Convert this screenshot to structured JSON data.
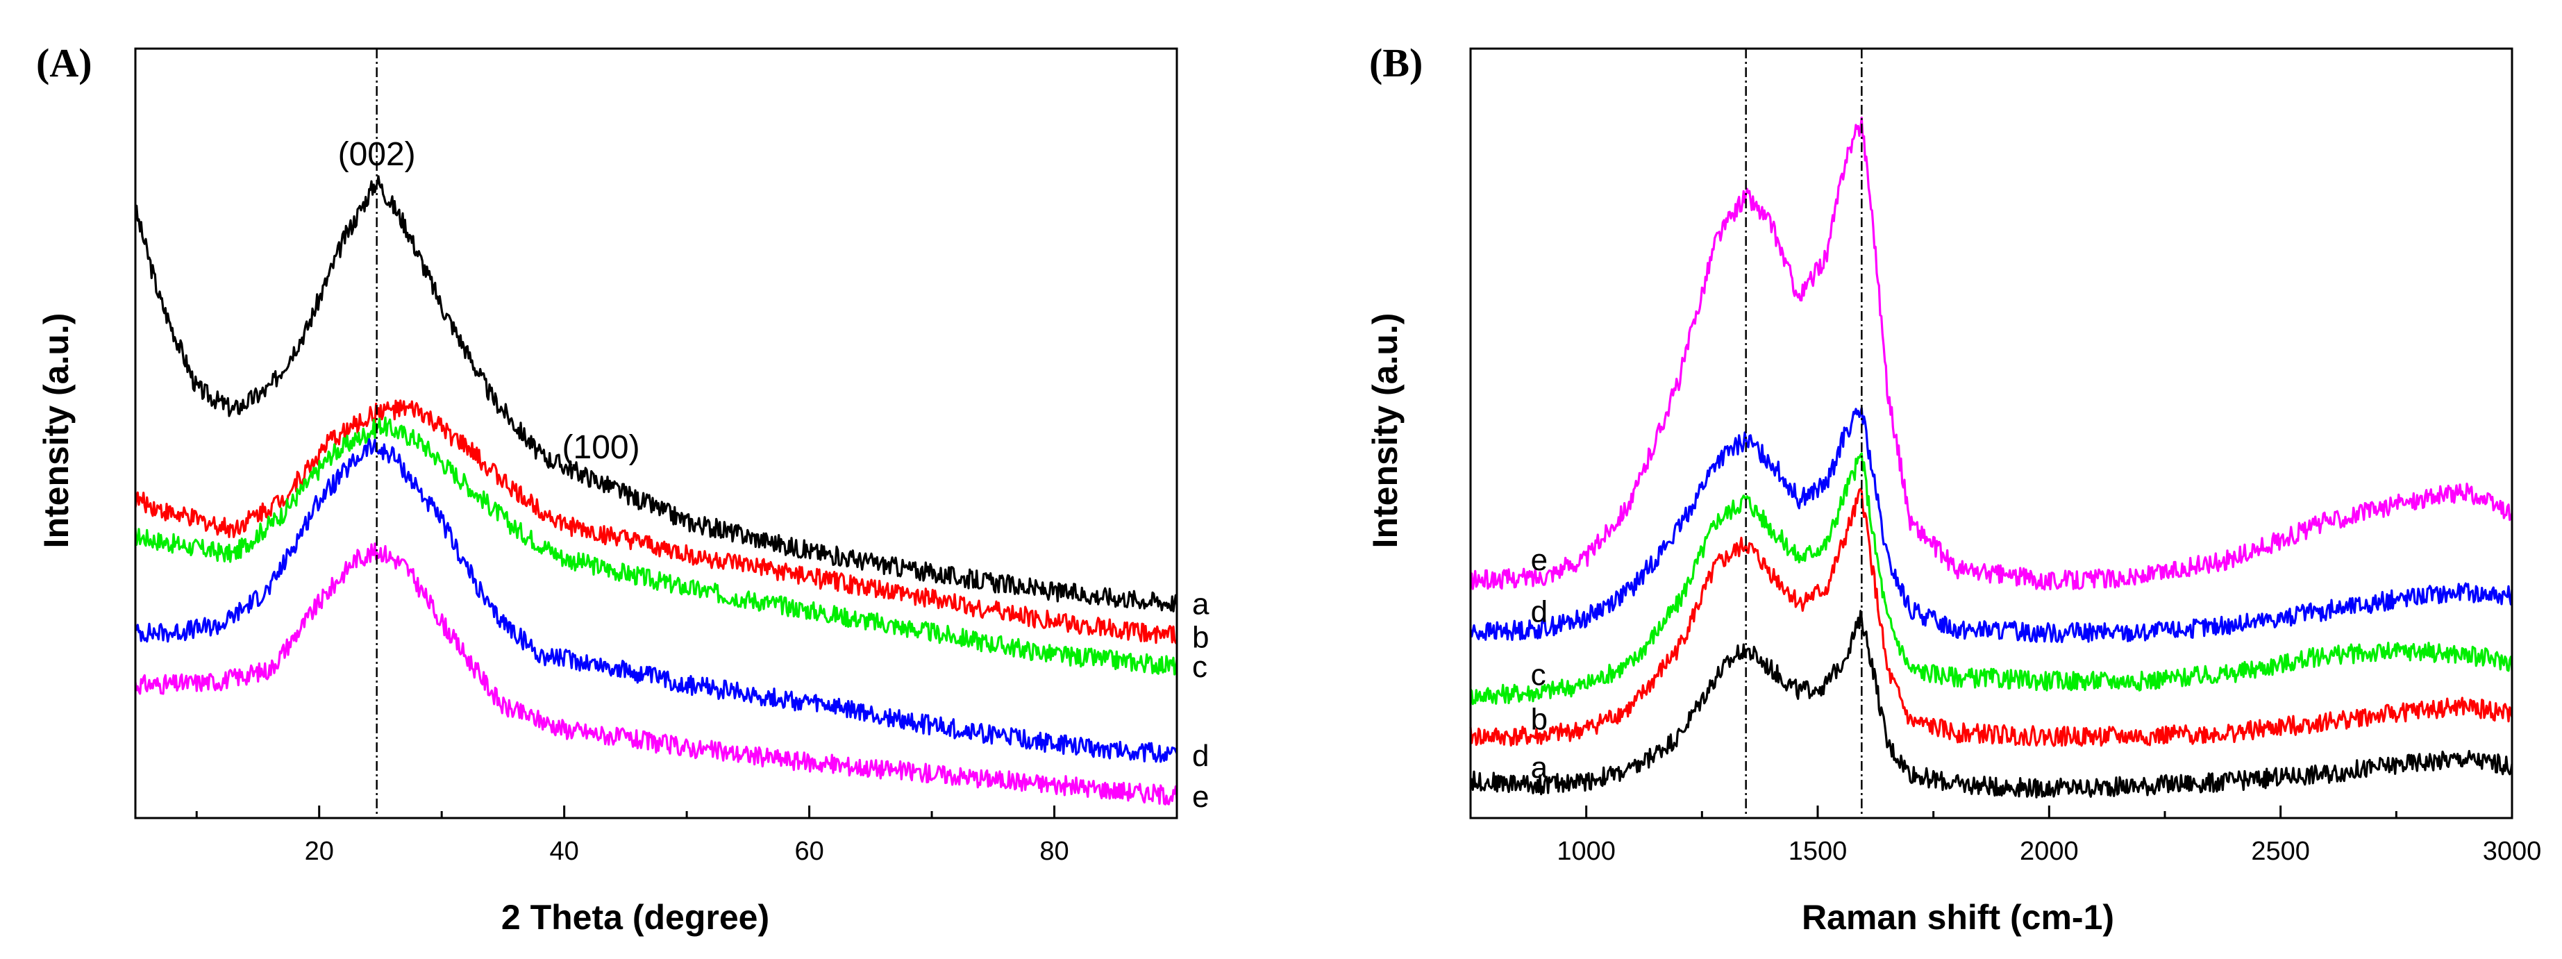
{
  "chart_data": [
    {
      "panel_label": "(A)",
      "type": "line",
      "xlabel": "2 Theta (degree)",
      "ylabel": "Intensity (a.u.)",
      "xlim": [
        5,
        90
      ],
      "ylim": [
        0,
        100
      ],
      "x_ticks": [
        20,
        40,
        60,
        80
      ],
      "x_minor_ticks": [
        10,
        30,
        50,
        70
      ],
      "tick_labels": [
        "20",
        "40",
        "60",
        "80"
      ],
      "vertical_reference_lines": [
        24.7
      ],
      "annotations": [
        {
          "text": "(002)",
          "x": 24.7,
          "y": 88
        },
        {
          "text": "(100)",
          "x": 43,
          "y": 48.5
        }
      ],
      "series": [
        {
          "name": "a",
          "color": "#000000",
          "points": [
            [
              5,
              82
            ],
            [
              7,
              70
            ],
            [
              10,
              58
            ],
            [
              13,
              55
            ],
            [
              16,
              58
            ],
            [
              19,
              66
            ],
            [
              22,
              78
            ],
            [
              24.7,
              86
            ],
            [
              27,
              80
            ],
            [
              30,
              69
            ],
            [
              34,
              57
            ],
            [
              38,
              49
            ],
            [
              42,
              46
            ],
            [
              50,
              40
            ],
            [
              60,
              36
            ],
            [
              70,
              33
            ],
            [
              80,
              30.5
            ],
            [
              90,
              29
            ]
          ]
        },
        {
          "name": "b",
          "color": "#ff0000",
          "points": [
            [
              5,
              43
            ],
            [
              8,
              41
            ],
            [
              13,
              39
            ],
            [
              17,
              43
            ],
            [
              21,
              51
            ],
            [
              25,
              55
            ],
            [
              28,
              55
            ],
            [
              32,
              50
            ],
            [
              36,
              44
            ],
            [
              40,
              39.5
            ],
            [
              50,
              35.5
            ],
            [
              60,
              32.5
            ],
            [
              70,
              29.5
            ],
            [
              80,
              26.5
            ],
            [
              90,
              24.5
            ]
          ]
        },
        {
          "name": "c",
          "color": "#00ee00",
          "points": [
            [
              5,
              38
            ],
            [
              8,
              37
            ],
            [
              13,
              35.5
            ],
            [
              17,
              41
            ],
            [
              21,
              49
            ],
            [
              25,
              53
            ],
            [
              28,
              51
            ],
            [
              32,
              45
            ],
            [
              36,
              39
            ],
            [
              40,
              35
            ],
            [
              50,
              31
            ],
            [
              60,
              28
            ],
            [
              70,
              25
            ],
            [
              80,
              22
            ],
            [
              90,
              20.5
            ]
          ]
        },
        {
          "name": "d",
          "color": "#0000ff",
          "points": [
            [
              5,
              25
            ],
            [
              8,
              25
            ],
            [
              12,
              26
            ],
            [
              16,
              31
            ],
            [
              20,
              43
            ],
            [
              24,
              50
            ],
            [
              26,
              49
            ],
            [
              30,
              40
            ],
            [
              34,
              28
            ],
            [
              38,
              22
            ],
            [
              42,
              21
            ],
            [
              50,
              18
            ],
            [
              60,
              15.5
            ],
            [
              70,
              12.5
            ],
            [
              80,
              10
            ],
            [
              90,
              8.5
            ]
          ]
        },
        {
          "name": "e",
          "color": "#ff00ff",
          "points": [
            [
              5,
              18
            ],
            [
              8,
              18
            ],
            [
              12,
              18.5
            ],
            [
              16,
              20
            ],
            [
              20,
              29
            ],
            [
              23,
              35
            ],
            [
              25,
              36
            ],
            [
              27,
              34
            ],
            [
              31,
              24
            ],
            [
              35,
              15
            ],
            [
              40,
              12
            ],
            [
              50,
              9.5
            ],
            [
              60,
              7.5
            ],
            [
              70,
              6
            ],
            [
              80,
              4.5
            ],
            [
              90,
              3
            ]
          ]
        }
      ]
    },
    {
      "panel_label": "(B)",
      "type": "line",
      "xlabel": "Raman shift (cm-1)",
      "ylabel": "Intensity (a.u.)",
      "xlim": [
        750,
        3000
      ],
      "ylim": [
        0,
        100
      ],
      "x_ticks": [
        1000,
        1500,
        2000,
        2500,
        3000
      ],
      "x_minor_ticks": [
        750,
        1250,
        1750,
        2250,
        2750
      ],
      "tick_labels": [
        "1000",
        "1500",
        "2000",
        "2500",
        "3000"
      ],
      "vertical_reference_lines": [
        1345,
        1595
      ],
      "series": [
        {
          "name": "a",
          "color": "#000000",
          "points": [
            [
              750,
              5
            ],
            [
              900,
              4.5
            ],
            [
              1000,
              5
            ],
            [
              1100,
              6.5
            ],
            [
              1200,
              11
            ],
            [
              1280,
              19
            ],
            [
              1340,
              23
            ],
            [
              1400,
              20
            ],
            [
              1460,
              17
            ],
            [
              1520,
              18
            ],
            [
              1560,
              22
            ],
            [
              1595,
              27
            ],
            [
              1620,
              20
            ],
            [
              1650,
              10
            ],
            [
              1700,
              6
            ],
            [
              1800,
              4.5
            ],
            [
              2000,
              4
            ],
            [
              2200,
              4.3
            ],
            [
              2400,
              5
            ],
            [
              2600,
              6
            ],
            [
              2800,
              7.5
            ],
            [
              2900,
              8
            ],
            [
              3000,
              7
            ]
          ]
        },
        {
          "name": "b",
          "color": "#ff0000",
          "points": [
            [
              750,
              11
            ],
            [
              900,
              11
            ],
            [
              1000,
              12
            ],
            [
              1100,
              15
            ],
            [
              1200,
              23
            ],
            [
              1280,
              34
            ],
            [
              1345,
              37
            ],
            [
              1400,
              33
            ],
            [
              1460,
              29
            ],
            [
              1520,
              31
            ],
            [
              1560,
              38
            ],
            [
              1595,
              44
            ],
            [
              1620,
              33
            ],
            [
              1650,
              20
            ],
            [
              1700,
              13
            ],
            [
              1800,
              11.5
            ],
            [
              2000,
              11
            ],
            [
              2200,
              11
            ],
            [
              2400,
              11.5
            ],
            [
              2600,
              13
            ],
            [
              2800,
              14.5
            ],
            [
              2900,
              15
            ],
            [
              3000,
              14
            ]
          ]
        },
        {
          "name": "c",
          "color": "#00ee00",
          "points": [
            [
              750,
              16.5
            ],
            [
              900,
              17
            ],
            [
              1000,
              18
            ],
            [
              1100,
              21
            ],
            [
              1200,
              29
            ],
            [
              1280,
              40
            ],
            [
              1345,
              43
            ],
            [
              1400,
              39
            ],
            [
              1460,
              35
            ],
            [
              1520,
              37
            ],
            [
              1560,
              44
            ],
            [
              1595,
              49
            ],
            [
              1620,
              38
            ],
            [
              1650,
              27
            ],
            [
              1700,
              20
            ],
            [
              1800,
              19
            ],
            [
              2000,
              18.5
            ],
            [
              2200,
              18.5
            ],
            [
              2400,
              19.5
            ],
            [
              2600,
              22
            ],
            [
              2800,
              22.5
            ],
            [
              2900,
              22
            ],
            [
              3000,
              21
            ]
          ]
        },
        {
          "name": "d",
          "color": "#0000ff",
          "points": [
            [
              750,
              25
            ],
            [
              900,
              25.5
            ],
            [
              1000,
              27
            ],
            [
              1100,
              31
            ],
            [
              1200,
              39
            ],
            [
              1280,
              48
            ],
            [
              1345,
              51
            ],
            [
              1400,
              48
            ],
            [
              1460,
              43
            ],
            [
              1520,
              45
            ],
            [
              1560,
              52
            ],
            [
              1595,
              55
            ],
            [
              1620,
              46
            ],
            [
              1650,
              35
            ],
            [
              1700,
              28
            ],
            [
              1800,
              25.5
            ],
            [
              2000,
              25
            ],
            [
              2200,
              25
            ],
            [
              2400,
              26
            ],
            [
              2600,
              28
            ],
            [
              2800,
              30
            ],
            [
              2900,
              30.5
            ],
            [
              3000,
              30
            ]
          ]
        },
        {
          "name": "e",
          "color": "#ff00ff",
          "points": [
            [
              750,
              32
            ],
            [
              900,
              32.5
            ],
            [
              1000,
              35
            ],
            [
              1100,
              43
            ],
            [
              1200,
              59
            ],
            [
              1280,
              78
            ],
            [
              1345,
              84
            ],
            [
              1400,
              80
            ],
            [
              1460,
              70
            ],
            [
              1520,
              76
            ],
            [
              1560,
              89
            ],
            [
              1595,
              94
            ],
            [
              1620,
              80
            ],
            [
              1650,
              58
            ],
            [
              1700,
              40
            ],
            [
              1800,
              33.5
            ],
            [
              2000,
              32
            ],
            [
              2200,
              32.5
            ],
            [
              2400,
              35
            ],
            [
              2600,
              40
            ],
            [
              2800,
              43
            ],
            [
              2900,
              44
            ],
            [
              3000,
              41
            ]
          ]
        }
      ]
    }
  ]
}
